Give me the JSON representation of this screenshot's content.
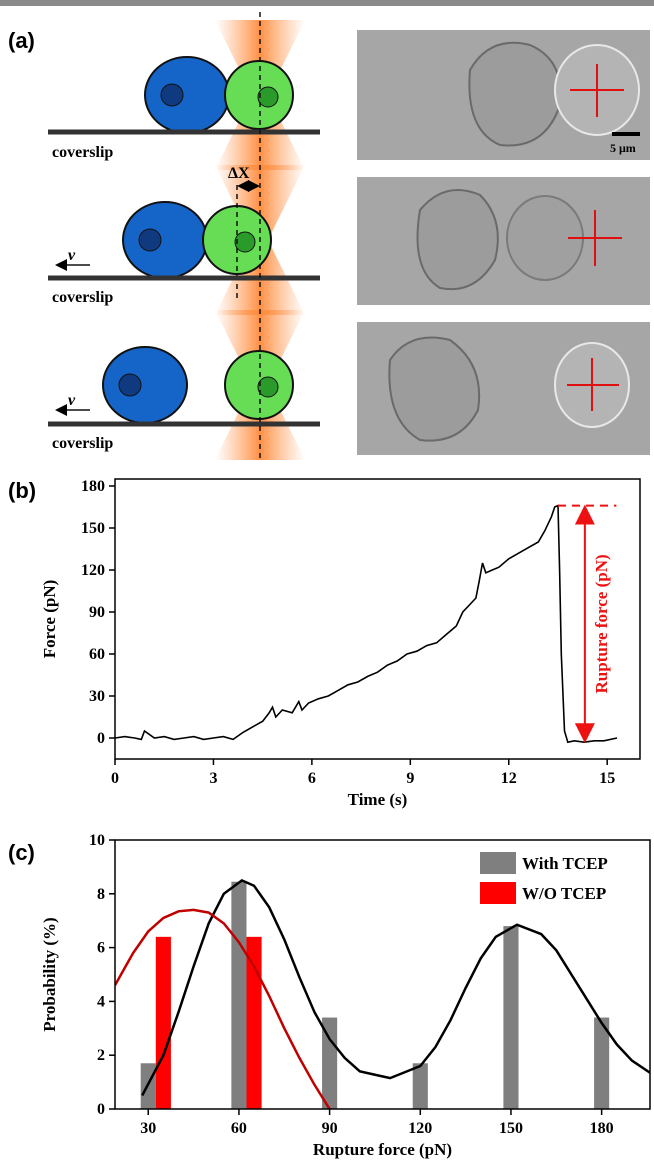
{
  "panel_a": {
    "label": "(a)",
    "rows": [
      {
        "surface": "coverslip"
      },
      {
        "surface": "coverslip",
        "displacement": "ΔX",
        "velocity": "v"
      },
      {
        "surface": "coverslip",
        "velocity": "v"
      }
    ],
    "scale_bar": "5 μm"
  },
  "chart_data": [
    {
      "type": "line",
      "label": "(b)",
      "x_label": "Time (s)",
      "y_label": "Force (pN)",
      "annotation": "Rupture force (pN)",
      "annotation_color": "#ee1111",
      "color": "#000000",
      "x": [
        0,
        0.3,
        0.6,
        0.8,
        0.9,
        1.2,
        1.5,
        1.8,
        2.1,
        2.4,
        2.7,
        3.0,
        3.3,
        3.6,
        3.9,
        4.2,
        4.5,
        4.7,
        4.8,
        4.9,
        5.1,
        5.4,
        5.6,
        5.7,
        5.9,
        6.2,
        6.5,
        6.8,
        7.1,
        7.4,
        7.7,
        8.0,
        8.3,
        8.6,
        8.9,
        9.2,
        9.5,
        9.8,
        10.1,
        10.4,
        10.6,
        10.8,
        11.0,
        11.1,
        11.2,
        11.3,
        11.5,
        11.7,
        12.0,
        12.3,
        12.6,
        12.9,
        13.1,
        13.3,
        13.4,
        13.5,
        13.55,
        13.6,
        13.7,
        13.8,
        14.0,
        14.3,
        14.6,
        14.9,
        15.3
      ],
      "values": [
        0,
        1,
        0,
        -1,
        5,
        0,
        1,
        -1,
        0,
        1,
        -1,
        0,
        1,
        -1,
        4,
        8,
        12,
        18,
        22,
        15,
        20,
        18,
        26,
        20,
        25,
        28,
        30,
        34,
        38,
        40,
        44,
        47,
        52,
        55,
        60,
        62,
        66,
        68,
        74,
        80,
        90,
        95,
        100,
        112,
        125,
        118,
        120,
        122,
        128,
        132,
        136,
        140,
        148,
        158,
        165,
        166,
        120,
        60,
        5,
        -3,
        -2,
        -3,
        -2,
        -2,
        0
      ],
      "xlim": [
        0,
        16
      ],
      "ylim": [
        -15,
        185
      ],
      "xticks": [
        0,
        3,
        6,
        9,
        12,
        15
      ],
      "yticks": [
        0,
        30,
        60,
        90,
        120,
        150,
        180
      ]
    },
    {
      "type": "bar",
      "label": "(c)",
      "x_label": "Rupture force (pN)",
      "y_label": "Probability (%)",
      "legend": "top-right",
      "series": [
        {
          "name": "With TCEP",
          "color": "#7f7f7f",
          "x": [
            30,
            60,
            90,
            120,
            150,
            180
          ],
          "values": [
            1.7,
            8.45,
            3.4,
            1.7,
            6.8,
            3.4
          ]
        },
        {
          "name": "W/O TCEP",
          "color": "#ff0000",
          "x": [
            35,
            65
          ],
          "values": [
            6.4,
            6.4
          ]
        }
      ],
      "fits": [
        {
          "color": "#000000",
          "x": [
            28,
            35,
            40,
            45,
            50,
            55,
            61,
            65,
            70,
            75,
            80,
            85,
            90,
            95,
            100,
            110,
            120,
            125,
            130,
            135,
            140,
            145,
            152,
            160,
            165,
            170,
            175,
            180,
            185,
            190,
            196
          ],
          "values": [
            0.5,
            2.0,
            3.6,
            5.3,
            6.9,
            8.0,
            8.5,
            8.3,
            7.5,
            6.3,
            4.9,
            3.6,
            2.6,
            1.9,
            1.4,
            1.15,
            1.6,
            2.3,
            3.3,
            4.5,
            5.6,
            6.4,
            6.85,
            6.5,
            5.9,
            5.0,
            4.1,
            3.2,
            2.4,
            1.8,
            1.35
          ]
        },
        {
          "color": "#c00000",
          "x": [
            19,
            25,
            30,
            35,
            40,
            45,
            50,
            55,
            60,
            65,
            70,
            75,
            80,
            85,
            90
          ],
          "values": [
            4.6,
            5.8,
            6.6,
            7.1,
            7.35,
            7.4,
            7.3,
            6.9,
            6.2,
            5.3,
            4.2,
            3.0,
            1.9,
            0.9,
            0
          ]
        }
      ],
      "xlim": [
        19,
        196
      ],
      "ylim": [
        0,
        10
      ],
      "xticks": [
        30,
        60,
        90,
        120,
        150,
        180
      ],
      "yticks": [
        0,
        2,
        4,
        6,
        8,
        10
      ]
    }
  ]
}
